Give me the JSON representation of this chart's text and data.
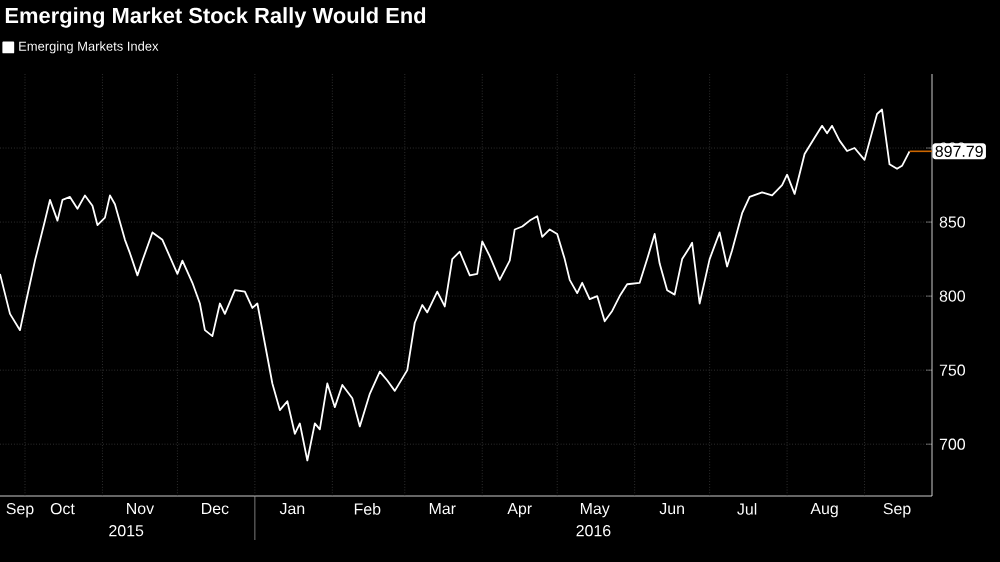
{
  "chart_data": {
    "type": "line",
    "title": "Emerging Market Stock Rally Would End",
    "x": [
      "2015-09-21",
      "2015-09-25",
      "2015-09-29",
      "2015-10-01",
      "2015-10-05",
      "2015-10-09",
      "2015-10-11",
      "2015-10-14",
      "2015-10-16",
      "2015-10-19",
      "2015-10-22",
      "2015-10-25",
      "2015-10-28",
      "2015-10-30",
      "2015-11-02",
      "2015-11-04",
      "2015-11-06",
      "2015-11-10",
      "2015-11-12",
      "2015-11-15",
      "2015-11-17",
      "2015-11-21",
      "2015-11-25",
      "2015-12-01",
      "2015-12-03",
      "2015-12-07",
      "2015-12-10",
      "2015-12-12",
      "2015-12-15",
      "2015-12-18",
      "2015-12-20",
      "2015-12-24",
      "2015-12-28",
      "2015-12-31",
      "2016-01-02",
      "2016-01-05",
      "2016-01-08",
      "2016-01-11",
      "2016-01-14",
      "2016-01-17",
      "2016-01-19",
      "2016-01-22",
      "2016-01-25",
      "2016-01-27",
      "2016-01-30",
      "2016-02-02",
      "2016-02-05",
      "2016-02-09",
      "2016-02-12",
      "2016-02-16",
      "2016-02-20",
      "2016-02-23",
      "2016-02-26",
      "2016-03-02",
      "2016-03-05",
      "2016-03-08",
      "2016-03-10",
      "2016-03-14",
      "2016-03-17",
      "2016-03-20",
      "2016-03-23",
      "2016-03-27",
      "2016-03-30",
      "2016-04-01",
      "2016-04-04",
      "2016-04-08",
      "2016-04-12",
      "2016-04-14",
      "2016-04-17",
      "2016-04-20",
      "2016-04-23",
      "2016-04-25",
      "2016-04-28",
      "2016-05-01",
      "2016-05-04",
      "2016-05-06",
      "2016-05-09",
      "2016-05-11",
      "2016-05-14",
      "2016-05-17",
      "2016-05-20",
      "2016-05-23",
      "2016-05-26",
      "2016-05-29",
      "2016-06-03",
      "2016-06-06",
      "2016-06-09",
      "2016-06-11",
      "2016-06-14",
      "2016-06-17",
      "2016-06-20",
      "2016-06-23",
      "2016-06-24",
      "2016-06-27",
      "2016-07-01",
      "2016-07-05",
      "2016-07-08",
      "2016-07-10",
      "2016-07-14",
      "2016-07-17",
      "2016-07-22",
      "2016-07-26",
      "2016-07-30",
      "2016-08-01",
      "2016-08-04",
      "2016-08-08",
      "2016-08-12",
      "2016-08-15",
      "2016-08-17",
      "2016-08-19",
      "2016-08-22",
      "2016-08-25",
      "2016-08-28",
      "2016-09-01",
      "2016-09-06",
      "2016-09-08",
      "2016-09-11",
      "2016-09-14",
      "2016-09-16",
      "2016-09-19"
    ],
    "series": [
      {
        "name": "Emerging Markets Index",
        "color": "#ffffff",
        "values": [
          815,
          788,
          777,
          793,
          824,
          851,
          865,
          851,
          865,
          867,
          859,
          868,
          861,
          848,
          853,
          868,
          862,
          838,
          829,
          814,
          824,
          843,
          838,
          815,
          824,
          809,
          795,
          777,
          773,
          795,
          788,
          804,
          803,
          792,
          795,
          768,
          741,
          723,
          729,
          707,
          714,
          689,
          714,
          710,
          741,
          725,
          740,
          731,
          712,
          734,
          749,
          743,
          736,
          750,
          782,
          794,
          789,
          803,
          793,
          825,
          830,
          814,
          815,
          837,
          827,
          811,
          824,
          845,
          847,
          851,
          854,
          840,
          845,
          842,
          825,
          811,
          802,
          809,
          798,
          800,
          783,
          790,
          800,
          808,
          809,
          825,
          842,
          822,
          804,
          801,
          825,
          833,
          836,
          795,
          825,
          843,
          820,
          831,
          856,
          867,
          870,
          868,
          875,
          882,
          869,
          896,
          907,
          915,
          910,
          915,
          905,
          898,
          900,
          892,
          923,
          926,
          889,
          886,
          888,
          897.79
        ]
      }
    ],
    "xlim": [
      "2015-09-21",
      "2016-09-28"
    ],
    "xticks": [
      {
        "value": "2015-09-29",
        "label": "Sep"
      },
      {
        "value": "2015-10-01",
        "label": null
      },
      {
        "value": "2015-10-16",
        "label": "Oct"
      },
      {
        "value": "2015-11-01",
        "label": null
      },
      {
        "value": "2015-11-16",
        "label": "Nov"
      },
      {
        "value": "2015-12-01",
        "label": null
      },
      {
        "value": "2015-12-16",
        "label": "Dec"
      },
      {
        "value": "2016-01-01",
        "label": null
      },
      {
        "value": "2016-01-16",
        "label": "Jan"
      },
      {
        "value": "2016-02-01",
        "label": null
      },
      {
        "value": "2016-02-15",
        "label": "Feb"
      },
      {
        "value": "2016-03-01",
        "label": null
      },
      {
        "value": "2016-03-16",
        "label": "Mar"
      },
      {
        "value": "2016-04-01",
        "label": null
      },
      {
        "value": "2016-04-16",
        "label": "Apr"
      },
      {
        "value": "2016-05-01",
        "label": null
      },
      {
        "value": "2016-05-16",
        "label": "May"
      },
      {
        "value": "2016-06-01",
        "label": null
      },
      {
        "value": "2016-06-16",
        "label": "Jun"
      },
      {
        "value": "2016-07-01",
        "label": null
      },
      {
        "value": "2016-07-16",
        "label": "Jul"
      },
      {
        "value": "2016-08-01",
        "label": null
      },
      {
        "value": "2016-08-16",
        "label": "Aug"
      },
      {
        "value": "2016-09-01",
        "label": null
      },
      {
        "value": "2016-09-14",
        "label": "Sep"
      }
    ],
    "ylim": [
      665,
      950
    ],
    "yticks": [
      700,
      750,
      800,
      850,
      900
    ],
    "grid": true,
    "legend": "top left",
    "annotations": [
      "2015",
      "2016",
      {
        "text": "897.79",
        "x": "2016-09-19",
        "y": 897.79
      }
    ]
  }
}
